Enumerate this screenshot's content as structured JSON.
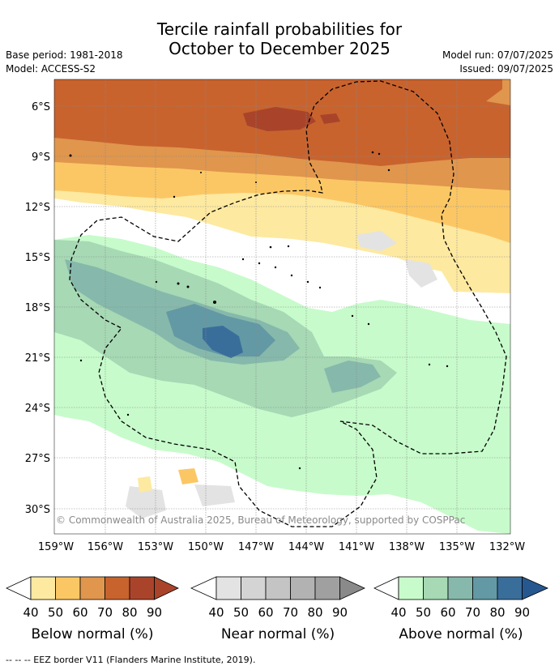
{
  "header": {
    "title_line1": "Tercile rainfall probabilities for",
    "title_line2": "October to December 2025",
    "base_period": "Base period: 1981-2018",
    "model": "Model: ACCESS-S2",
    "model_run": "Model run: 07/07/2025",
    "issued": "Issued: 09/07/2025"
  },
  "map": {
    "lat_labels": [
      "6°S",
      "9°S",
      "12°S",
      "15°S",
      "18°S",
      "21°S",
      "24°S",
      "27°S",
      "30°S"
    ],
    "lon_labels": [
      "159°W",
      "156°W",
      "153°W",
      "150°W",
      "147°W",
      "144°W",
      "141°W",
      "138°W",
      "135°W",
      "132°W"
    ],
    "copyright": "© Commonwealth of Australia 2025, Bureau of Meteorology, supported by COSPPac",
    "colors": {
      "below": [
        "#fde9a0",
        "#fbc765",
        "#e0964d",
        "#c8632e",
        "#a9442a",
        "#a9442a"
      ],
      "near": [
        "#e3e3e3",
        "#d4d4d4",
        "#c4c4c4",
        "#b2b2b2",
        "#a0a0a0",
        "#8a8a8a"
      ],
      "above": [
        "#c7fbcb",
        "#a6d9b4",
        "#86b9ab",
        "#6399a4",
        "#3a6e9a",
        "#26588f"
      ]
    }
  },
  "legends": [
    {
      "id": "below",
      "label": "Below normal (%)",
      "ticks": [
        "40",
        "50",
        "60",
        "70",
        "80",
        "90"
      ]
    },
    {
      "id": "near",
      "label": "Near normal (%)",
      "ticks": [
        "40",
        "50",
        "60",
        "70",
        "80",
        "90"
      ]
    },
    {
      "id": "above",
      "label": "Above normal (%)",
      "ticks": [
        "40",
        "50",
        "60",
        "70",
        "80",
        "90"
      ]
    }
  ],
  "footnote": "--  --  -- EEZ border V11 (Flanders Marine Institute, 2019)."
}
